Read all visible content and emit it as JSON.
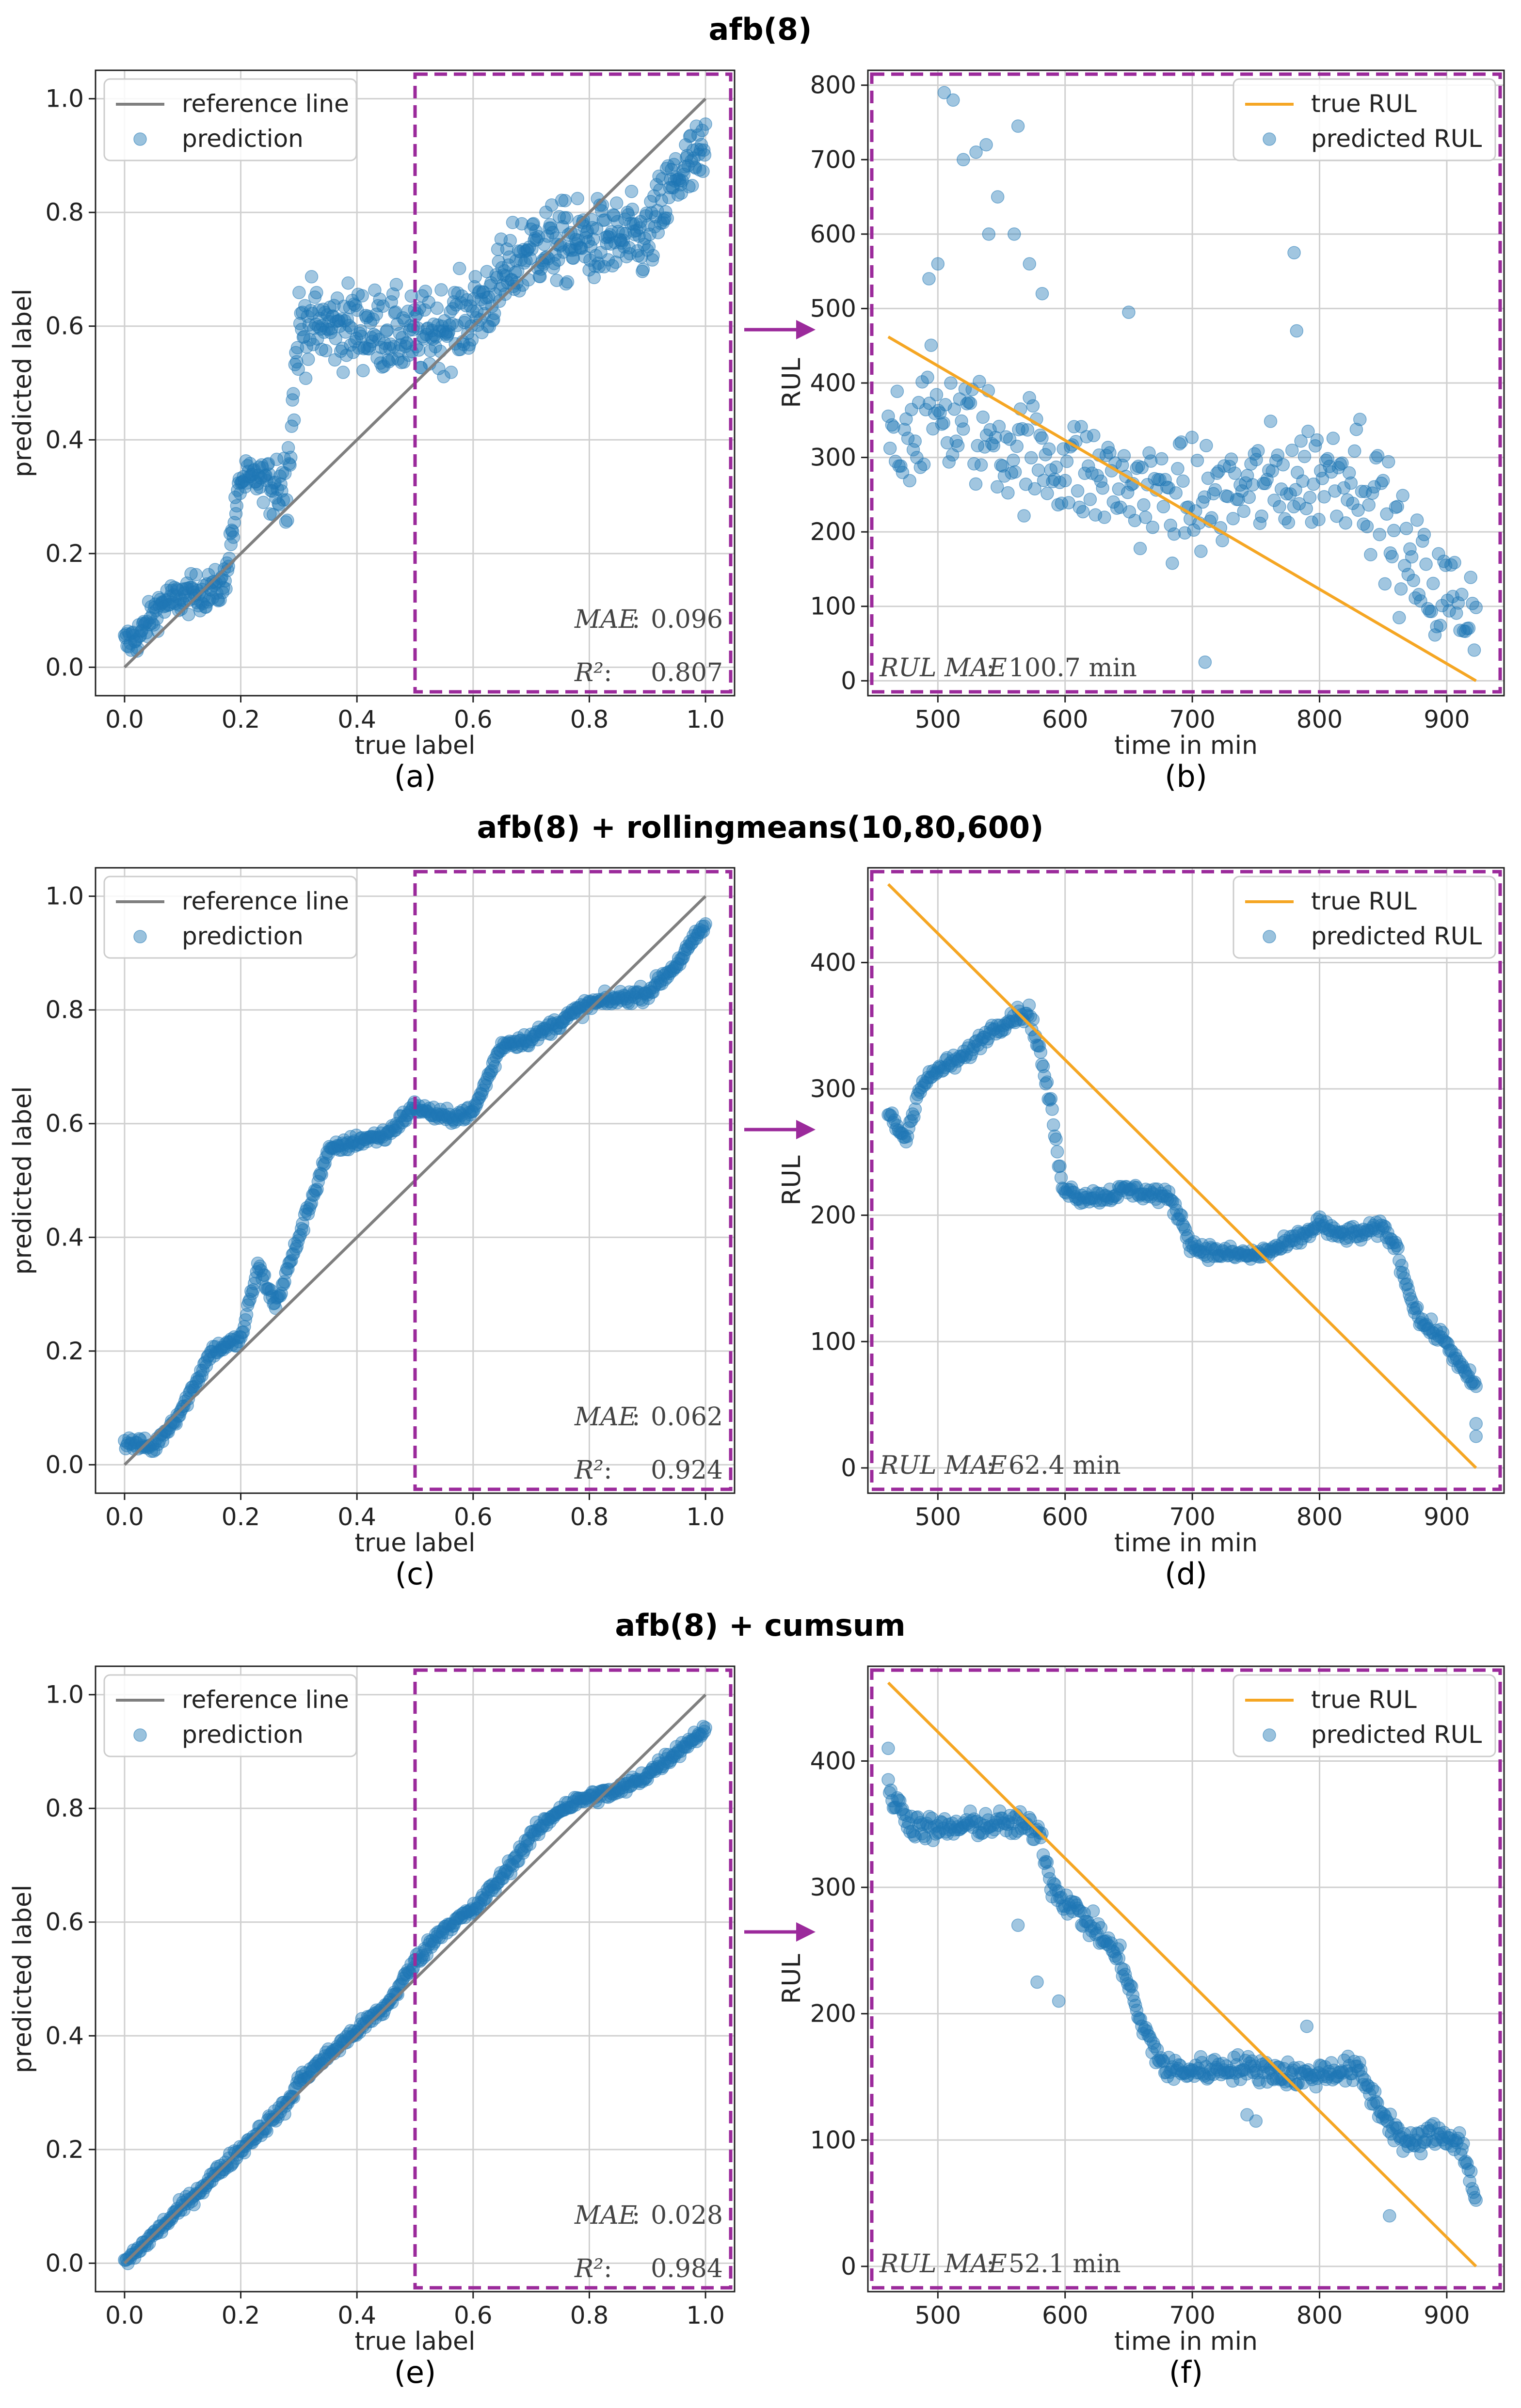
{
  "figure": {
    "panel_tags": [
      "(a)",
      "(b)",
      "(c)",
      "(d)",
      "(e)",
      "(f)"
    ]
  },
  "colors": {
    "scatter": "#1f77b4",
    "reference_line": "#7f7f7f",
    "true_rul": "#f5a623",
    "highlight_box": "#9b2a9b",
    "grid": "#d0d0d0"
  },
  "rows": [
    {
      "title": "afb(8)"
    },
    {
      "title": "afb(8) + rollingmeans(10,80,600)"
    },
    {
      "title": "afb(8) + cumsum"
    }
  ],
  "chart_data": [
    {
      "id": "a",
      "type": "scatter",
      "row_title": "afb(8)",
      "xlabel": "true label",
      "ylabel": "predicted label",
      "xlim": [
        -0.05,
        1.05
      ],
      "ylim": [
        -0.05,
        1.05
      ],
      "xticks": [
        "0.0",
        "0.2",
        "0.4",
        "0.6",
        "0.8",
        "1.0"
      ],
      "yticks": [
        "0.0",
        "0.2",
        "0.4",
        "0.6",
        "0.8",
        "1.0"
      ],
      "legend": [
        "reference line",
        "prediction"
      ],
      "reference_line": [
        [
          0,
          0
        ],
        [
          1,
          1
        ]
      ],
      "highlight_x_from": 0.5,
      "metrics": {
        "mae_label": "MAE",
        "mae_value": "0.096",
        "r2_label": "R²",
        "r2_value": "0.807"
      },
      "prediction_trend": [
        [
          0.0,
          0.04
        ],
        [
          0.03,
          0.06
        ],
        [
          0.06,
          0.11
        ],
        [
          0.12,
          0.13
        ],
        [
          0.17,
          0.14
        ],
        [
          0.2,
          0.33
        ],
        [
          0.28,
          0.33
        ],
        [
          0.3,
          0.6
        ],
        [
          0.4,
          0.6
        ],
        [
          0.5,
          0.58
        ],
        [
          0.6,
          0.62
        ],
        [
          0.7,
          0.74
        ],
        [
          0.8,
          0.75
        ],
        [
          0.9,
          0.75
        ],
        [
          0.95,
          0.86
        ],
        [
          1.0,
          0.9
        ]
      ],
      "noise": 0.07
    },
    {
      "id": "b",
      "type": "scatter+line",
      "row_title": "afb(8)",
      "xlabel": "time in min",
      "ylabel": "RUL",
      "xlim": [
        445,
        945
      ],
      "ylim": [
        -20,
        820
      ],
      "xticks": [
        "500",
        "600",
        "700",
        "800",
        "900"
      ],
      "yticks": [
        "0",
        "100",
        "200",
        "300",
        "400",
        "500",
        "600",
        "700",
        "800"
      ],
      "legend": [
        "true RUL",
        "predicted RUL"
      ],
      "true_rul": [
        [
          461,
          462
        ],
        [
          923,
          0
        ]
      ],
      "rul_mae": {
        "label": "RUL MAE",
        "value": "100.7 min"
      },
      "prediction_trend": [
        [
          461,
          330
        ],
        [
          500,
          360
        ],
        [
          550,
          320
        ],
        [
          600,
          290
        ],
        [
          650,
          260
        ],
        [
          700,
          240
        ],
        [
          750,
          260
        ],
        [
          800,
          280
        ],
        [
          830,
          290
        ],
        [
          850,
          230
        ],
        [
          870,
          150
        ],
        [
          900,
          110
        ],
        [
          923,
          100
        ]
      ],
      "noise": 75,
      "outliers": [
        [
          505,
          790
        ],
        [
          512,
          780
        ],
        [
          520,
          700
        ],
        [
          530,
          710
        ],
        [
          538,
          720
        ],
        [
          563,
          745
        ],
        [
          547,
          650
        ],
        [
          540,
          600
        ],
        [
          560,
          600
        ],
        [
          572,
          560
        ],
        [
          582,
          520
        ],
        [
          500,
          560
        ],
        [
          493,
          540
        ],
        [
          710,
          25
        ],
        [
          780,
          575
        ],
        [
          782,
          470
        ],
        [
          650,
          495
        ]
      ]
    },
    {
      "id": "c",
      "type": "scatter",
      "row_title": "afb(8) + rollingmeans(10,80,600)",
      "xlabel": "true label",
      "ylabel": "predicted label",
      "xlim": [
        -0.05,
        1.05
      ],
      "ylim": [
        -0.05,
        1.05
      ],
      "xticks": [
        "0.0",
        "0.2",
        "0.4",
        "0.6",
        "0.8",
        "1.0"
      ],
      "yticks": [
        "0.0",
        "0.2",
        "0.4",
        "0.6",
        "0.8",
        "1.0"
      ],
      "legend": [
        "reference line",
        "prediction"
      ],
      "reference_line": [
        [
          0,
          0
        ],
        [
          1,
          1
        ]
      ],
      "highlight_x_from": 0.5,
      "metrics": {
        "mae_label": "MAE",
        "mae_value": "0.062",
        "r2_label": "R²",
        "r2_value": "0.924"
      },
      "prediction_trend": [
        [
          0.0,
          0.04
        ],
        [
          0.05,
          0.03
        ],
        [
          0.1,
          0.1
        ],
        [
          0.15,
          0.2
        ],
        [
          0.2,
          0.22
        ],
        [
          0.23,
          0.35
        ],
        [
          0.26,
          0.28
        ],
        [
          0.3,
          0.4
        ],
        [
          0.35,
          0.55
        ],
        [
          0.4,
          0.57
        ],
        [
          0.45,
          0.58
        ],
        [
          0.5,
          0.63
        ],
        [
          0.55,
          0.61
        ],
        [
          0.6,
          0.62
        ],
        [
          0.65,
          0.74
        ],
        [
          0.7,
          0.75
        ],
        [
          0.75,
          0.78
        ],
        [
          0.8,
          0.81
        ],
        [
          0.85,
          0.82
        ],
        [
          0.9,
          0.83
        ],
        [
          0.95,
          0.88
        ],
        [
          1.0,
          0.95
        ]
      ],
      "noise": 0.012
    },
    {
      "id": "d",
      "type": "scatter+line",
      "row_title": "afb(8) + rollingmeans(10,80,600)",
      "xlabel": "time in min",
      "ylabel": "RUL",
      "xlim": [
        445,
        945
      ],
      "ylim": [
        -20,
        475
      ],
      "xticks": [
        "500",
        "600",
        "700",
        "800",
        "900"
      ],
      "yticks": [
        "0",
        "100",
        "200",
        "300",
        "400"
      ],
      "legend": [
        "true RUL",
        "predicted RUL"
      ],
      "true_rul": [
        [
          461,
          462
        ],
        [
          923,
          0
        ]
      ],
      "rul_mae": {
        "label": "RUL MAE",
        "value": "62.4 min"
      },
      "prediction_trend": [
        [
          461,
          280
        ],
        [
          475,
          260
        ],
        [
          485,
          300
        ],
        [
          500,
          315
        ],
        [
          520,
          325
        ],
        [
          540,
          345
        ],
        [
          560,
          358
        ],
        [
          572,
          360
        ],
        [
          580,
          330
        ],
        [
          590,
          280
        ],
        [
          597,
          225
        ],
        [
          610,
          215
        ],
        [
          630,
          215
        ],
        [
          650,
          220
        ],
        [
          680,
          215
        ],
        [
          690,
          200
        ],
        [
          700,
          175
        ],
        [
          720,
          170
        ],
        [
          750,
          168
        ],
        [
          770,
          175
        ],
        [
          790,
          185
        ],
        [
          800,
          195
        ],
        [
          810,
          185
        ],
        [
          830,
          185
        ],
        [
          850,
          190
        ],
        [
          860,
          175
        ],
        [
          870,
          140
        ],
        [
          880,
          115
        ],
        [
          900,
          100
        ],
        [
          910,
          80
        ],
        [
          923,
          65
        ]
      ],
      "noise": 6,
      "outliers": [
        [
          923,
          35
        ],
        [
          923,
          25
        ]
      ]
    },
    {
      "id": "e",
      "type": "scatter",
      "row_title": "afb(8) + cumsum",
      "xlabel": "true label",
      "ylabel": "predicted label",
      "xlim": [
        -0.05,
        1.05
      ],
      "ylim": [
        -0.05,
        1.05
      ],
      "xticks": [
        "0.0",
        "0.2",
        "0.4",
        "0.6",
        "0.8",
        "1.0"
      ],
      "yticks": [
        "0.0",
        "0.2",
        "0.4",
        "0.6",
        "0.8",
        "1.0"
      ],
      "legend": [
        "reference line",
        "prediction"
      ],
      "reference_line": [
        [
          0,
          0
        ],
        [
          1,
          1
        ]
      ],
      "highlight_x_from": 0.5,
      "metrics": {
        "mae_label": "MAE",
        "mae_value": "0.028",
        "r2_label": "R²",
        "r2_value": "0.984"
      },
      "prediction_trend": [
        [
          0.0,
          0.0
        ],
        [
          0.1,
          0.1
        ],
        [
          0.2,
          0.2
        ],
        [
          0.28,
          0.28
        ],
        [
          0.3,
          0.32
        ],
        [
          0.4,
          0.41
        ],
        [
          0.45,
          0.45
        ],
        [
          0.5,
          0.53
        ],
        [
          0.55,
          0.59
        ],
        [
          0.6,
          0.62
        ],
        [
          0.65,
          0.68
        ],
        [
          0.7,
          0.75
        ],
        [
          0.75,
          0.8
        ],
        [
          0.8,
          0.82
        ],
        [
          0.85,
          0.83
        ],
        [
          0.9,
          0.86
        ],
        [
          0.95,
          0.9
        ],
        [
          1.0,
          0.94
        ]
      ],
      "noise": 0.012
    },
    {
      "id": "f",
      "type": "scatter+line",
      "row_title": "afb(8) + cumsum",
      "xlabel": "time in min",
      "ylabel": "RUL",
      "xlim": [
        445,
        945
      ],
      "ylim": [
        -20,
        475
      ],
      "xticks": [
        "500",
        "600",
        "700",
        "800",
        "900"
      ],
      "yticks": [
        "0",
        "100",
        "200",
        "300",
        "400"
      ],
      "legend": [
        "true RUL",
        "predicted RUL"
      ],
      "true_rul": [
        [
          461,
          462
        ],
        [
          923,
          0
        ]
      ],
      "rul_mae": {
        "label": "RUL MAE",
        "value": "52.1 min"
      },
      "prediction_trend": [
        [
          461,
          375
        ],
        [
          480,
          350
        ],
        [
          500,
          345
        ],
        [
          530,
          350
        ],
        [
          560,
          350
        ],
        [
          580,
          345
        ],
        [
          590,
          300
        ],
        [
          610,
          280
        ],
        [
          630,
          260
        ],
        [
          645,
          240
        ],
        [
          660,
          190
        ],
        [
          680,
          155
        ],
        [
          700,
          155
        ],
        [
          730,
          158
        ],
        [
          760,
          155
        ],
        [
          790,
          150
        ],
        [
          810,
          155
        ],
        [
          830,
          155
        ],
        [
          850,
          120
        ],
        [
          870,
          95
        ],
        [
          890,
          105
        ],
        [
          910,
          100
        ],
        [
          923,
          55
        ]
      ],
      "noise": 10,
      "outliers": [
        [
          461,
          410
        ],
        [
          563,
          270
        ],
        [
          578,
          225
        ],
        [
          595,
          210
        ],
        [
          743,
          120
        ],
        [
          750,
          115
        ],
        [
          855,
          40
        ],
        [
          790,
          190
        ]
      ]
    }
  ]
}
